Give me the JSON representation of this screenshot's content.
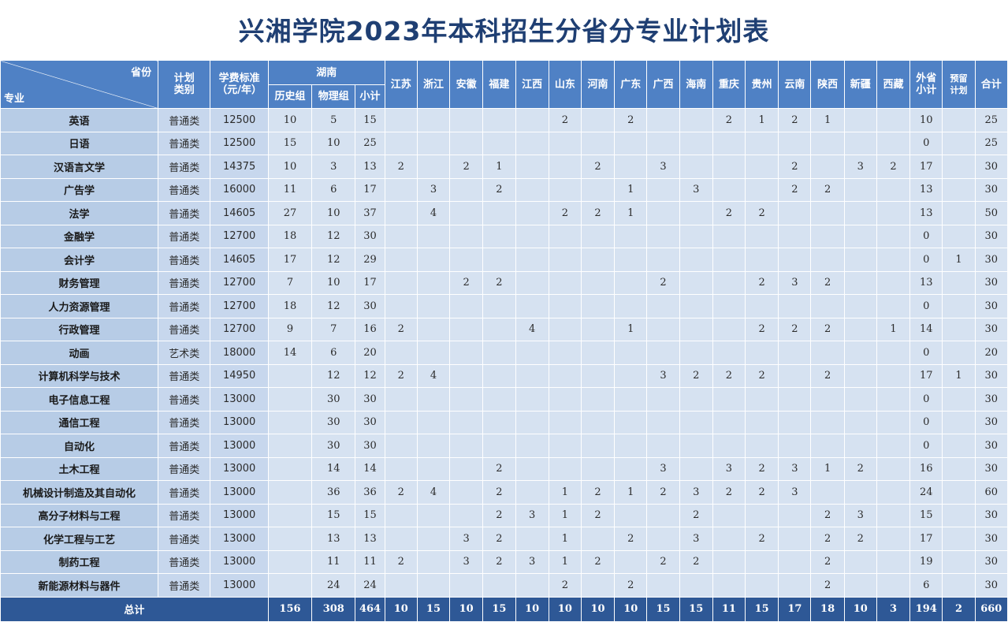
{
  "title": "兴湘学院2023年本科招生分省分专业计划表",
  "header": {
    "corner_top": "省份",
    "corner_bottom": "专业",
    "type": [
      "计划",
      "类别"
    ],
    "fee": [
      "学费标准",
      "（元/年）"
    ],
    "hunan": "湖南",
    "hunan_sub": [
      "历史组",
      "物理组",
      "小计"
    ],
    "provinces": [
      "江苏",
      "浙江",
      "安徽",
      "福建",
      "江西",
      "山东",
      "河南",
      "广东",
      "广西",
      "海南",
      "重庆",
      "贵州",
      "云南",
      "陕西",
      "新疆",
      "西藏"
    ],
    "out_subtotal": [
      "外省",
      "小计"
    ],
    "reserve": [
      "预留",
      "计划"
    ],
    "total": "合计"
  },
  "rows": [
    {
      "major": "英语",
      "type": "普通类",
      "fee": "12500",
      "hist": "10",
      "phys": "5",
      "hsub": "15",
      "p": [
        "",
        "",
        "",
        "",
        "",
        "2",
        "",
        "2",
        "",
        "",
        "2",
        "1",
        "2",
        "1",
        "",
        ""
      ],
      "out": "10",
      "res": "",
      "total": "25"
    },
    {
      "major": "日语",
      "type": "普通类",
      "fee": "12500",
      "hist": "15",
      "phys": "10",
      "hsub": "25",
      "p": [
        "",
        "",
        "",
        "",
        "",
        "",
        "",
        "",
        "",
        "",
        "",
        "",
        "",
        "",
        "",
        ""
      ],
      "out": "0",
      "res": "",
      "total": "25"
    },
    {
      "major": "汉语言文学",
      "type": "普通类",
      "fee": "14375",
      "hist": "10",
      "phys": "3",
      "hsub": "13",
      "p": [
        "2",
        "",
        "2",
        "1",
        "",
        "",
        "2",
        "",
        "3",
        "",
        "",
        "",
        "2",
        "",
        "3",
        "2"
      ],
      "out": "17",
      "res": "",
      "total": "30"
    },
    {
      "major": "广告学",
      "type": "普通类",
      "fee": "16000",
      "hist": "11",
      "phys": "6",
      "hsub": "17",
      "p": [
        "",
        "3",
        "",
        "2",
        "",
        "",
        "",
        "1",
        "",
        "3",
        "",
        "",
        "2",
        "2",
        "",
        ""
      ],
      "out": "13",
      "res": "",
      "total": "30"
    },
    {
      "major": "法学",
      "type": "普通类",
      "fee": "14605",
      "hist": "27",
      "phys": "10",
      "hsub": "37",
      "p": [
        "",
        "4",
        "",
        "",
        "",
        "2",
        "2",
        "1",
        "",
        "",
        "2",
        "2",
        "",
        "",
        "",
        ""
      ],
      "out": "13",
      "res": "",
      "total": "50"
    },
    {
      "major": "金融学",
      "type": "普通类",
      "fee": "12700",
      "hist": "18",
      "phys": "12",
      "hsub": "30",
      "p": [
        "",
        "",
        "",
        "",
        "",
        "",
        "",
        "",
        "",
        "",
        "",
        "",
        "",
        "",
        "",
        ""
      ],
      "out": "0",
      "res": "",
      "total": "30"
    },
    {
      "major": "会计学",
      "type": "普通类",
      "fee": "14605",
      "hist": "17",
      "phys": "12",
      "hsub": "29",
      "p": [
        "",
        "",
        "",
        "",
        "",
        "",
        "",
        "",
        "",
        "",
        "",
        "",
        "",
        "",
        "",
        ""
      ],
      "out": "0",
      "res": "1",
      "total": "30"
    },
    {
      "major": "财务管理",
      "type": "普通类",
      "fee": "12700",
      "hist": "7",
      "phys": "10",
      "hsub": "17",
      "p": [
        "",
        "",
        "2",
        "2",
        "",
        "",
        "",
        "",
        "2",
        "",
        "",
        "2",
        "3",
        "2",
        "",
        ""
      ],
      "out": "13",
      "res": "",
      "total": "30"
    },
    {
      "major": "人力资源管理",
      "type": "普通类",
      "fee": "12700",
      "hist": "18",
      "phys": "12",
      "hsub": "30",
      "p": [
        "",
        "",
        "",
        "",
        "",
        "",
        "",
        "",
        "",
        "",
        "",
        "",
        "",
        "",
        "",
        ""
      ],
      "out": "0",
      "res": "",
      "total": "30"
    },
    {
      "major": "行政管理",
      "type": "普通类",
      "fee": "12700",
      "hist": "9",
      "phys": "7",
      "hsub": "16",
      "p": [
        "2",
        "",
        "",
        "",
        "4",
        "",
        "",
        "1",
        "",
        "",
        "",
        "2",
        "2",
        "2",
        "",
        "1"
      ],
      "out": "14",
      "res": "",
      "total": "30"
    },
    {
      "major": "动画",
      "type": "艺术类",
      "fee": "18000",
      "hist": "14",
      "phys": "6",
      "hsub": "20",
      "p": [
        "",
        "",
        "",
        "",
        "",
        "",
        "",
        "",
        "",
        "",
        "",
        "",
        "",
        "",
        "",
        ""
      ],
      "out": "0",
      "res": "",
      "total": "20"
    },
    {
      "major": "计算机科学与技术",
      "type": "普通类",
      "fee": "14950",
      "hist": "",
      "phys": "12",
      "hsub": "12",
      "p": [
        "2",
        "4",
        "",
        "",
        "",
        "",
        "",
        "",
        "3",
        "2",
        "2",
        "2",
        "",
        "2",
        "",
        ""
      ],
      "out": "17",
      "res": "1",
      "total": "30"
    },
    {
      "major": "电子信息工程",
      "type": "普通类",
      "fee": "13000",
      "hist": "",
      "phys": "30",
      "hsub": "30",
      "p": [
        "",
        "",
        "",
        "",
        "",
        "",
        "",
        "",
        "",
        "",
        "",
        "",
        "",
        "",
        "",
        ""
      ],
      "out": "0",
      "res": "",
      "total": "30"
    },
    {
      "major": "通信工程",
      "type": "普通类",
      "fee": "13000",
      "hist": "",
      "phys": "30",
      "hsub": "30",
      "p": [
        "",
        "",
        "",
        "",
        "",
        "",
        "",
        "",
        "",
        "",
        "",
        "",
        "",
        "",
        "",
        ""
      ],
      "out": "0",
      "res": "",
      "total": "30"
    },
    {
      "major": "自动化",
      "type": "普通类",
      "fee": "13000",
      "hist": "",
      "phys": "30",
      "hsub": "30",
      "p": [
        "",
        "",
        "",
        "",
        "",
        "",
        "",
        "",
        "",
        "",
        "",
        "",
        "",
        "",
        "",
        ""
      ],
      "out": "0",
      "res": "",
      "total": "30"
    },
    {
      "major": "土木工程",
      "type": "普通类",
      "fee": "13000",
      "hist": "",
      "phys": "14",
      "hsub": "14",
      "p": [
        "",
        "",
        "",
        "2",
        "",
        "",
        "",
        "",
        "3",
        "",
        "3",
        "2",
        "3",
        "1",
        "2",
        ""
      ],
      "out": "16",
      "res": "",
      "total": "30"
    },
    {
      "major": "机械设计制造及其自动化",
      "type": "普通类",
      "fee": "13000",
      "hist": "",
      "phys": "36",
      "hsub": "36",
      "p": [
        "2",
        "4",
        "",
        "2",
        "",
        "1",
        "2",
        "1",
        "2",
        "3",
        "2",
        "2",
        "3",
        "",
        "",
        ""
      ],
      "out": "24",
      "res": "",
      "total": "60"
    },
    {
      "major": "高分子材料与工程",
      "type": "普通类",
      "fee": "13000",
      "hist": "",
      "phys": "15",
      "hsub": "15",
      "p": [
        "",
        "",
        "",
        "2",
        "3",
        "1",
        "2",
        "",
        "",
        "2",
        "",
        "",
        "",
        "2",
        "3",
        ""
      ],
      "out": "15",
      "res": "",
      "total": "30"
    },
    {
      "major": "化学工程与工艺",
      "type": "普通类",
      "fee": "13000",
      "hist": "",
      "phys": "13",
      "hsub": "13",
      "p": [
        "",
        "",
        "3",
        "2",
        "",
        "1",
        "",
        "2",
        "",
        "3",
        "",
        "2",
        "",
        "2",
        "2",
        ""
      ],
      "out": "17",
      "res": "",
      "total": "30"
    },
    {
      "major": "制药工程",
      "type": "普通类",
      "fee": "13000",
      "hist": "",
      "phys": "11",
      "hsub": "11",
      "p": [
        "2",
        "",
        "3",
        "2",
        "3",
        "1",
        "2",
        "",
        "2",
        "2",
        "",
        "",
        "",
        "2",
        "",
        ""
      ],
      "out": "19",
      "res": "",
      "total": "30"
    },
    {
      "major": "新能源材料与器件",
      "type": "普通类",
      "fee": "13000",
      "hist": "",
      "phys": "24",
      "hsub": "24",
      "p": [
        "",
        "",
        "",
        "",
        "",
        "2",
        "",
        "2",
        "",
        "",
        "",
        "",
        "",
        "2",
        "",
        ""
      ],
      "out": "6",
      "res": "",
      "total": "30"
    }
  ],
  "footer": {
    "label": "总计",
    "hist": "156",
    "phys": "308",
    "hsub": "464",
    "p": [
      "10",
      "15",
      "10",
      "15",
      "10",
      "10",
      "10",
      "10",
      "15",
      "15",
      "11",
      "15",
      "17",
      "18",
      "10",
      "3"
    ],
    "out": "194",
    "res": "2",
    "total": "660"
  }
}
